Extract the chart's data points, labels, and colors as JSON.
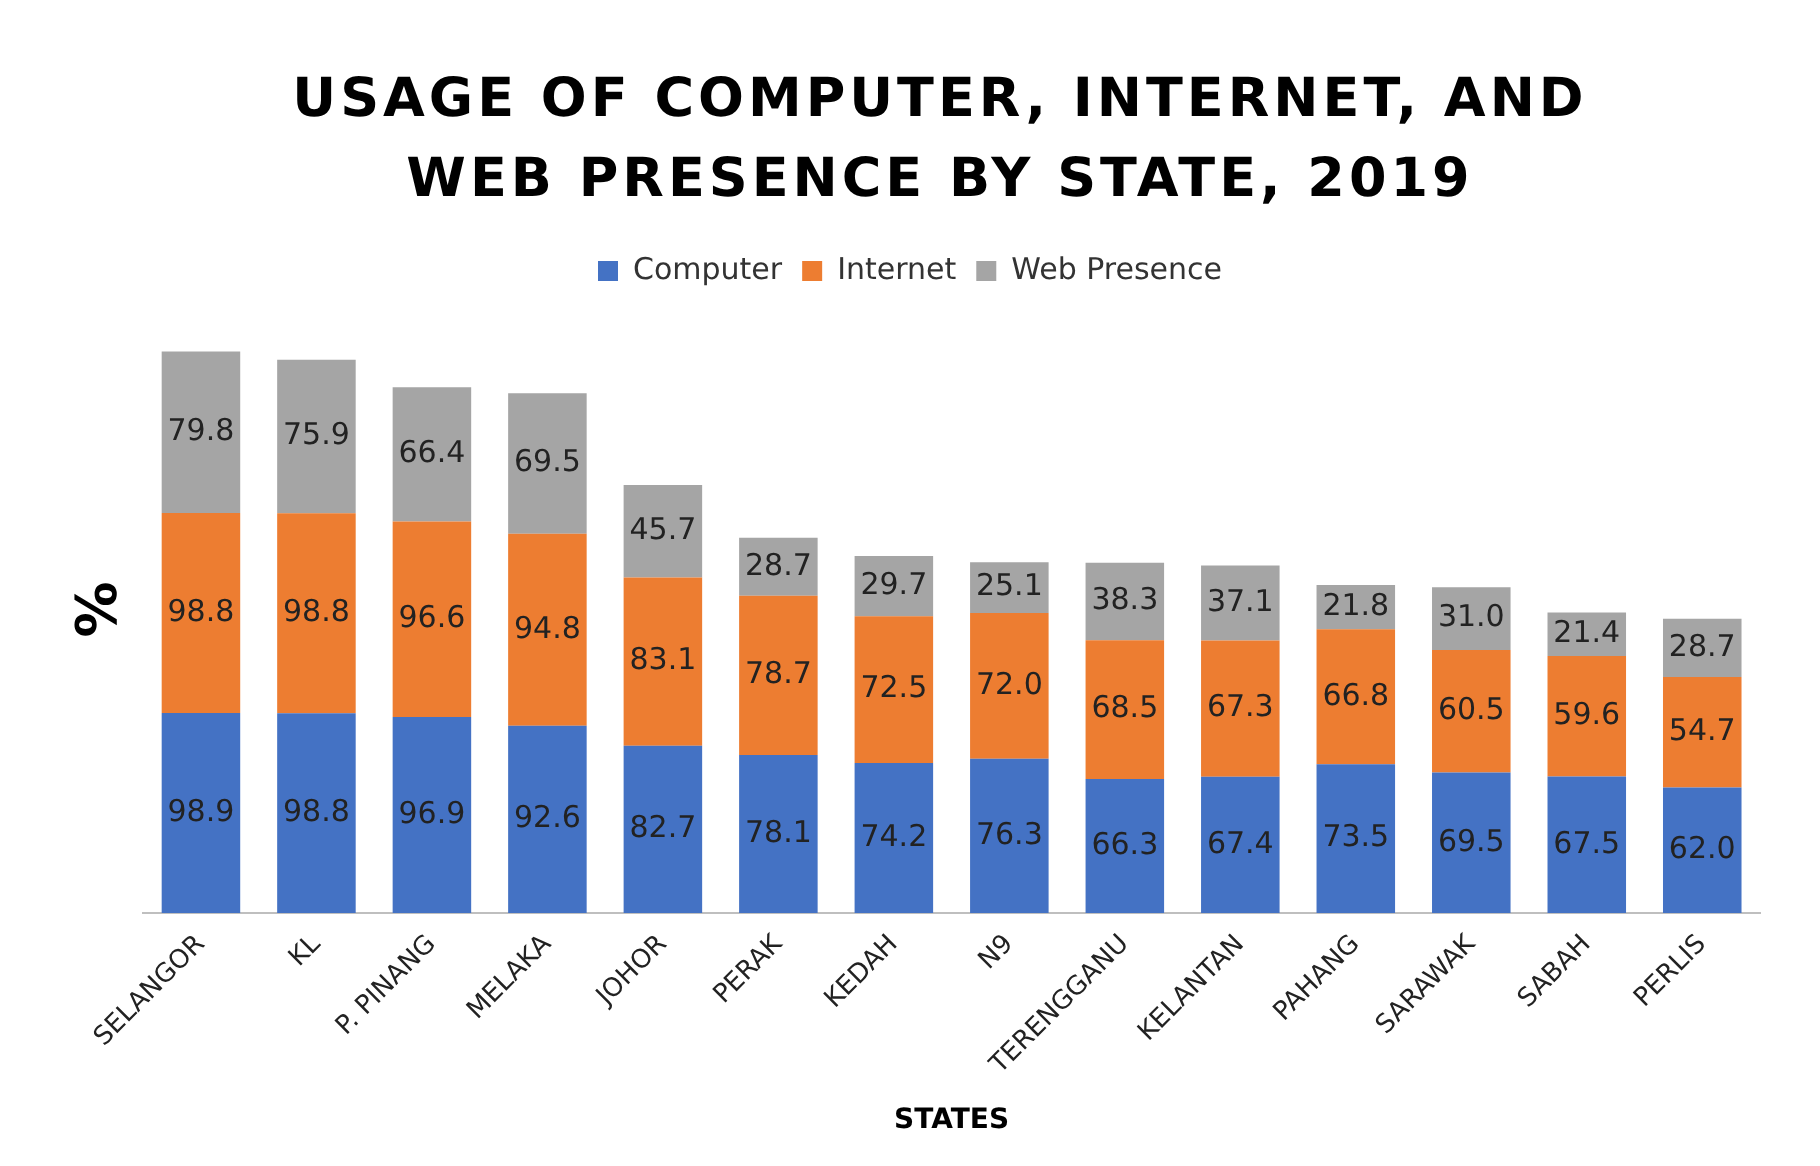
{
  "chart_data": {
    "type": "bar",
    "title": "USAGE OF COMPUTER, INTERNET, AND WEB PRESENCE BY STATE, 2019",
    "xlabel": "STATES",
    "ylabel": "%",
    "stacked": true,
    "legend": "top",
    "grid": false,
    "categories": [
      "SELANGOR",
      "KL",
      "P. PINANG",
      "MELAKA",
      "JOHOR",
      "PERAK",
      "KEDAH",
      "N9",
      "TERENGGANU",
      "KELANTAN",
      "PAHANG",
      "SARAWAK",
      "SABAH",
      "PERLIS"
    ],
    "series": [
      {
        "name": "Computer",
        "color": "#4472c4",
        "values": [
          98.9,
          98.8,
          96.9,
          92.6,
          82.7,
          78.1,
          74.2,
          76.3,
          66.3,
          67.4,
          73.5,
          69.5,
          67.5,
          62.0
        ],
        "value_labels": [
          "98.9",
          "98.8",
          "96.9",
          "92.6",
          "82.7",
          "78.1",
          "74.2",
          "76.3",
          "66.3",
          "67.4",
          "73.5",
          "69.5",
          "67.5",
          "62.0"
        ]
      },
      {
        "name": "Internet",
        "color": "#ed7d31",
        "values": [
          98.8,
          98.8,
          96.6,
          94.8,
          83.1,
          78.7,
          72.5,
          72.0,
          68.5,
          67.3,
          66.8,
          60.5,
          59.6,
          54.7
        ],
        "value_labels": [
          "98.8",
          "98.8",
          "96.6",
          "94.8",
          "83.1",
          "78.7",
          "72.5",
          "72.0",
          "68.5",
          "67.3",
          "66.8",
          "60.5",
          "59.6",
          "54.7"
        ]
      },
      {
        "name": "Web Presence",
        "color": "#a5a5a5",
        "values": [
          79.8,
          75.9,
          66.4,
          69.5,
          45.7,
          28.7,
          29.7,
          25.1,
          38.3,
          37.1,
          21.8,
          31.0,
          21.4,
          28.7
        ],
        "value_labels": [
          "79.8",
          "75.9",
          "66.4",
          "69.5",
          "45.7",
          "28.7",
          "29.7",
          "25.1",
          "38.3",
          "37.1",
          "21.8",
          "31.0",
          "21.4",
          "28.7"
        ]
      }
    ]
  }
}
